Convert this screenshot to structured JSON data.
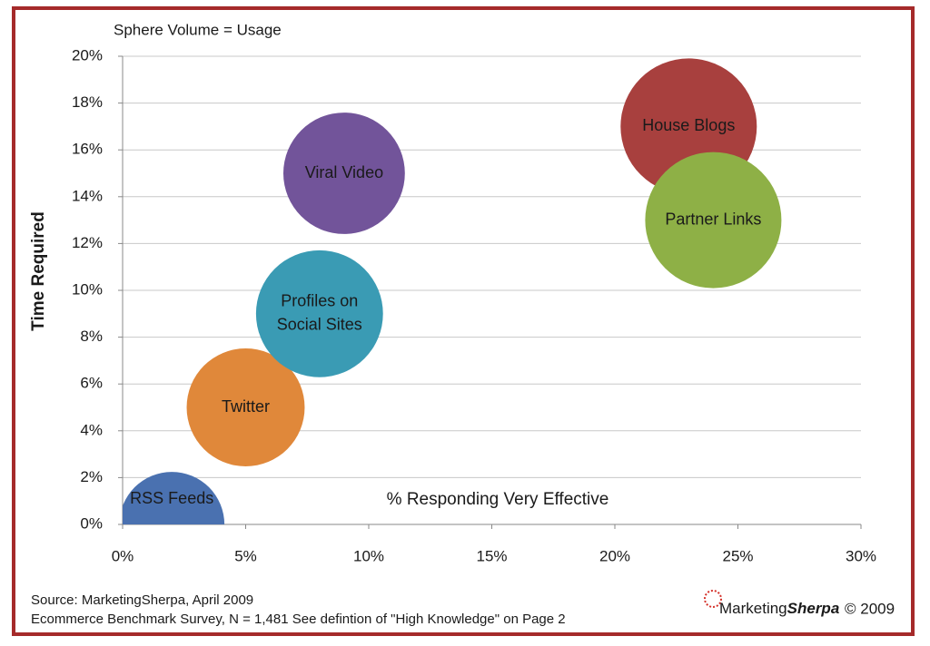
{
  "chart_data": {
    "type": "bubble",
    "note": "Sphere Volume = Usage",
    "xlabel": "% Responding Very Effective",
    "ylabel": "Time Required",
    "xlim": [
      0,
      30
    ],
    "xticks": [
      {
        "value": 0,
        "label": "0%"
      },
      {
        "value": 5,
        "label": "5%"
      },
      {
        "value": 10,
        "label": "10%"
      },
      {
        "value": 15,
        "label": "15%"
      },
      {
        "value": 20,
        "label": "20%"
      },
      {
        "value": 25,
        "label": "25%"
      },
      {
        "value": 30,
        "label": "30%"
      }
    ],
    "ylim": [
      0,
      20
    ],
    "yticks": [
      {
        "value": 0,
        "label": "0%"
      },
      {
        "value": 2,
        "label": "2%"
      },
      {
        "value": 4,
        "label": "4%"
      },
      {
        "value": 6,
        "label": "6%"
      },
      {
        "value": 8,
        "label": "8%"
      },
      {
        "value": 10,
        "label": "10%"
      },
      {
        "value": 12,
        "label": "12%"
      },
      {
        "value": 14,
        "label": "14%"
      },
      {
        "value": 16,
        "label": "16%"
      },
      {
        "value": 18,
        "label": "18%"
      },
      {
        "value": 20,
        "label": "20%"
      }
    ],
    "grid": true,
    "points": [
      {
        "label": [
          "RSS Feeds"
        ],
        "x": 2,
        "y": 0,
        "size": 46,
        "color": "#4a71b0"
      },
      {
        "label": [
          "Twitter"
        ],
        "x": 5,
        "y": 5,
        "size": 65,
        "color": "#e0883a"
      },
      {
        "label": [
          "Profiles on",
          "Social Sites"
        ],
        "x": 8,
        "y": 9,
        "size": 81,
        "color": "#3a9bb4"
      },
      {
        "label": [
          "Viral Video"
        ],
        "x": 9,
        "y": 15,
        "size": 71,
        "color": "#72549a"
      },
      {
        "label": [
          "House Blogs"
        ],
        "x": 23,
        "y": 17,
        "size": 100,
        "color": "#a8403e"
      },
      {
        "label": [
          "Partner Links"
        ],
        "x": 24,
        "y": 13,
        "size": 100,
        "color": "#8eb046"
      }
    ]
  },
  "footer": {
    "source": [
      "Source: MarketingSherpa, April 2009",
      "Ecommerce Benchmark Survey, N = 1,481 See defintion of \"High Knowledge\" on Page 2"
    ],
    "logo": [
      "Marketing",
      "Sherpa"
    ],
    "copyright": "© 2009"
  }
}
